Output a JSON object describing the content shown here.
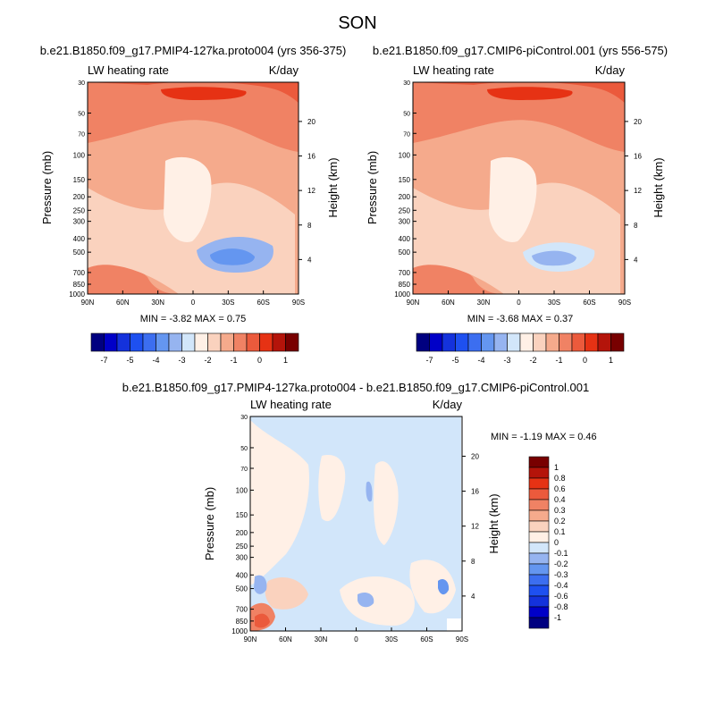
{
  "figure_title": "SON",
  "pressure_ticks": [
    "30",
    "50",
    "70",
    "100",
    "150",
    "200",
    "250",
    "300",
    "400",
    "500",
    "700",
    "850",
    "1000"
  ],
  "height_ticks": [
    "20",
    "16",
    "12",
    "8",
    "4"
  ],
  "lat_ticks": [
    "90N",
    "60N",
    "30N",
    "0",
    "30S",
    "60S",
    "90S"
  ],
  "colors_abs": [
    "#000080",
    "#0000c8",
    "#1432dc",
    "#1e50f0",
    "#3c6ef0",
    "#6496f0",
    "#96b4f0",
    "#d2e6fa",
    "#fff0e6",
    "#fad2be",
    "#f5aa8c",
    "#f08264",
    "#eb5a3c",
    "#e63214",
    "#b4140a",
    "#780000"
  ],
  "colors_diff": [
    "#780000",
    "#b4140a",
    "#e63214",
    "#eb5a3c",
    "#f08264",
    "#f5aa8c",
    "#fad2be",
    "#fff0e6",
    "#d2e6fa",
    "#96b4f0",
    "#6496f0",
    "#3c6ef0",
    "#1e50f0",
    "#1432dc",
    "#0000c8",
    "#000080"
  ],
  "chart_data": [
    {
      "type": "heatmap",
      "title": "b.e21.B1850.f09_g17.PMIP4-127ka.proto004 (yrs 356-375)",
      "left_label": "LW heating rate",
      "right_label": "K/day",
      "ylabel": "Pressure (mb)",
      "ylabel_right": "Height (km)",
      "stats": "MIN =  -3.82   MAX =   0.75",
      "colorbar_labels": [
        "-7",
        "-5",
        "-4",
        "-3",
        "-2",
        "-1",
        "0",
        "1"
      ]
    },
    {
      "type": "heatmap",
      "title": "b.e21.B1850.f09_g17.CMIP6-piControl.001 (yrs 556-575)",
      "left_label": "LW heating rate",
      "right_label": "K/day",
      "ylabel": "Pressure (mb)",
      "ylabel_right": "Height (km)",
      "stats": "MIN =  -3.68   MAX =   0.37",
      "colorbar_labels": [
        "-7",
        "-5",
        "-4",
        "-3",
        "-2",
        "-1",
        "0",
        "1"
      ]
    },
    {
      "type": "heatmap",
      "title": "b.e21.B1850.f09_g17.PMIP4-127ka.proto004 - b.e21.B1850.f09_g17.CMIP6-piControl.001",
      "left_label": "LW heating rate",
      "right_label": "K/day",
      "ylabel": "Pressure (mb)",
      "ylabel_right": "Height (km)",
      "stats": "MIN =  -1.19   MAX =   0.46",
      "colorbar_labels": [
        "1",
        "0.8",
        "0.6",
        "0.4",
        "0.3",
        "0.2",
        "0.1",
        "0",
        "-0.1",
        "-0.2",
        "-0.3",
        "-0.4",
        "-0.6",
        "-0.8",
        "-1"
      ]
    }
  ]
}
